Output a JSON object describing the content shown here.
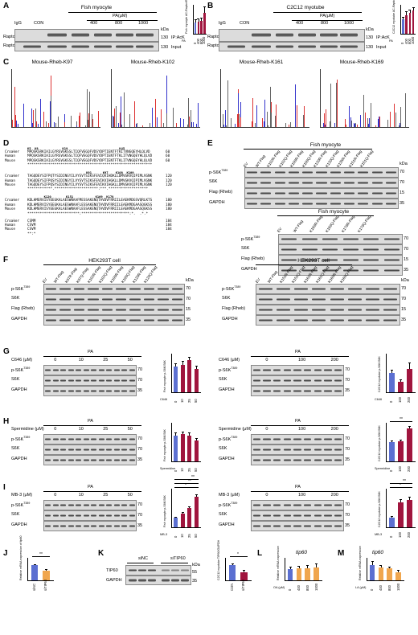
{
  "panels": {
    "A": {
      "letter": "A",
      "title": "Fish myocyte",
      "pa_label": "PA(μM)",
      "lanes": [
        "IgG",
        "CON",
        "400",
        "800",
        "1000"
      ],
      "rows": [
        {
          "name": "Raptor",
          "kda": "130",
          "side": "IP:AcK"
        },
        {
          "name": "Raptor",
          "kda": "130",
          "side": "Input"
        }
      ],
      "kda_label": "kDa",
      "chart_data": {
        "type": "bar",
        "categories": [
          "0",
          "400",
          "800",
          "1000"
        ],
        "values": [
          1.0,
          1.05,
          1.1,
          1.8
        ],
        "errors": [
          0.2,
          0.2,
          0.25,
          0.5
        ],
        "ylim": [
          0,
          2.5
        ],
        "ylabel": "Fish myocyte AC-Raptor/Raptor",
        "xlabel": "PA"
      }
    },
    "B": {
      "letter": "B",
      "title": "C2C12 myotube",
      "pa_label": "PA(μM)",
      "lanes": [
        "IgG",
        "CON",
        "400",
        "800",
        "1000"
      ],
      "rows": [
        {
          "name": "Raptor",
          "kda": "130",
          "side": "IP:AcK"
        },
        {
          "name": "Raptor",
          "kda": "130",
          "side": "Input"
        }
      ],
      "kda_label": "kDa",
      "chart_data": {
        "type": "bar",
        "categories": [
          "0",
          "400",
          "800",
          "1000"
        ],
        "values": [
          1.0,
          1.3,
          1.45,
          1.6
        ],
        "errors": [
          0.15,
          0.2,
          0.2,
          0.2
        ],
        "ylim": [
          0,
          2.0
        ],
        "ylabel": "C2C12 myotube AC-Raptor/Raptor",
        "xlabel": "PA"
      }
    },
    "C": {
      "letter": "C",
      "spectra": [
        "Mouse-Rheb-K97",
        "Mouse-Rheb-K102",
        "Mouse-Rheb-K161",
        "Mouse-Rheb-K169"
      ]
    },
    "D": {
      "letter": "D",
      "species": [
        "Croaker",
        "Human",
        "Mouse"
      ],
      "blocks": [
        {
          "sites": "K5  K8             K19                            K45",
          "seqs": [
            "MPQSKSRKIAILGYRSVGKSSLTIQFVEGQFVDSYDPTIENTFTKITVNGQEYHLQLVD",
            "MPQSKSRKIAILGYRSVGKSSLTIQFVEGQFVDSYDPTIENTFTKLITVNGQEYHLQLVD",
            "MPQSKSRKIAILGYRSVGKSSLTIQFVEGQFVDSYDPTIENTFTKLITVNGQEYHLQLVD"
          ],
          "end": [
            "60",
            "60",
            "60"
          ],
          "cons": "************************************************************"
        },
        {
          "sites": "                                K91      K97    K108  K109",
          "seqs": [
            "TAGQDEYSIFPQTYSIDINGYILVYSVTSIKSFEVIQVIHDKLLDMVGKVQIPIMLVGNK",
            "TAGQDEYSIFPQSYSIDINGYILVYSVTSIKSFEVIKVIHGKLLDMVGKVQIPIMLVGNK",
            "TAGQDEYSIFPQSYSIDINGYILVYSVTSIKSFEVIKVIHGKLLDMVGKVQIPIMLVGNK"
          ],
          "end": [
            "120",
            "120",
            "120"
          ],
          "cons": "************.*********************:***.*******************"
        },
        {
          "sites": "         K120        K151            K169  K178",
          "seqs": [
            "KDLHMERVISYEEGKALAESWNAAFMESSAKENQTAVDVFRRIILEAEKMDGSVQRLKTS",
            "KDLHMERVISYEEGKALAESWNAAFLESSAKENQTAVDVFRRIILEAEKMDGAASQGKSS",
            "KDLHMERVISYEEGKALAESWNAAFLESSAKENQTAVDVFRRIILEAEKMDGAASQGKSS"
          ],
          "end": [
            "180",
            "180",
            "180"
          ],
          "cons": "*************************:***********************:*.  .*.*"
        },
        {
          "sites": "",
          "seqs": [
            "CSMM",
            "CSVM",
            "CSVM"
          ],
          "end": [
            "184",
            "184",
            "184"
          ],
          "cons": "**:*"
        }
      ]
    },
    "E": {
      "letter": "E",
      "title_top": "Fish myocyte",
      "lanes_top": [
        "EV",
        "WT-Flag",
        "K102R-Flag",
        "K102Q-Flag",
        "K109R-Flag",
        "K109Q-Flag",
        "K120R-Flag",
        "K120Q-Flag",
        "K135R-Flag",
        "K151R-Flag",
        "K151Q-Flag"
      ],
      "title_bottom": "Fish myocyte",
      "lanes_bottom": [
        "EV",
        "WT-Flag",
        "K169R-Flag",
        "K169Q-Flag",
        "K178R-Flag",
        "K178Q-Flag"
      ],
      "rows": [
        {
          "name": "p-S6K",
          "sup": "T389",
          "kda": "70"
        },
        {
          "name": "S6K",
          "sup": "",
          "kda": "70"
        },
        {
          "name": "Flag (Rheb)",
          "sup": "",
          "kda": "15"
        },
        {
          "name": "GAPDH",
          "sup": "",
          "kda": "35"
        }
      ],
      "kda_label": "kDa"
    },
    "F": {
      "letter": "F",
      "title_left": "HEK293T cell",
      "lanes_left": [
        "EV",
        "WT-Flag",
        "K97R-Flag",
        "K97Q-Flag",
        "K102R-Flag",
        "K102Q-Flag",
        "K109R-Flag",
        "K109Q-Flag",
        "K120R-Flag",
        "K120Q-Flag"
      ],
      "title_right": "HEK293T cell",
      "lanes_right": [
        "EV",
        "WT-Flag",
        "K151R-Flag",
        "K151Q-Flag",
        "K161R-Flag",
        "K161Q-Flag",
        "K169R-Flag",
        "K169Q-Flag"
      ],
      "rows": [
        {
          "name": "p-S6K",
          "sup": "T389",
          "kda": "70"
        },
        {
          "name": "S6K",
          "sup": "",
          "kda": "70"
        },
        {
          "name": "Flag (Rheb)",
          "sup": "",
          "kda": "15"
        },
        {
          "name": "GAPDH",
          "sup": "",
          "kda": "35"
        }
      ],
      "kda_label": "kDa"
    },
    "G": {
      "letter": "G",
      "left": {
        "treat": "C646 (μM)",
        "pa": "PA",
        "doses": [
          "0",
          "10",
          "25",
          "50"
        ]
      },
      "right": {
        "treat": "C646 (μM)",
        "pa": "PA",
        "doses": [
          "0",
          "100",
          "200"
        ]
      },
      "rows": [
        {
          "name": "p-S6K",
          "sup": "T389",
          "kda": "70"
        },
        {
          "name": "S6K",
          "sup": "",
          "kda": "70"
        },
        {
          "name": "GAPDH",
          "sup": "",
          "kda": "35"
        }
      ],
      "chart_left": {
        "type": "bar",
        "categories": [
          "0",
          "10",
          "25",
          "50"
        ],
        "values": [
          1.0,
          1.05,
          1.25,
          0.9
        ],
        "errors": [
          0.1,
          0.15,
          0.1,
          0.1
        ],
        "ylim": [
          0,
          1.5
        ],
        "ylabel": "Fish myocyte p-S6K/S6K",
        "xlabel": "C646"
      },
      "chart_right": {
        "type": "bar",
        "categories": [
          "0",
          "100",
          "200"
        ],
        "values": [
          1.0,
          0.55,
          1.2
        ],
        "errors": [
          0.15,
          0.1,
          0.3
        ],
        "ylim": [
          0,
          2.0
        ],
        "ylabel": "C2C12 myotube p-S6K/S6K",
        "xlabel": "C646"
      }
    },
    "H": {
      "letter": "H",
      "left": {
        "treat": "Spermidine (μM)",
        "pa": "PA",
        "doses": [
          "0",
          "10",
          "25",
          "50"
        ]
      },
      "right": {
        "treat": "Spermidine (μM)",
        "pa": "PA",
        "doses": [
          "0",
          "100",
          "200"
        ]
      },
      "rows": [
        {
          "name": "p-S6K",
          "sup": "T389",
          "kda": "70"
        },
        {
          "name": "S6K",
          "sup": "",
          "kda": "70"
        },
        {
          "name": "GAPDH",
          "sup": "",
          "kda": "35"
        }
      ],
      "chart_left": {
        "type": "bar",
        "categories": [
          "0",
          "10",
          "25",
          "50"
        ],
        "values": [
          1.0,
          1.05,
          1.0,
          0.8
        ],
        "errors": [
          0.1,
          0.1,
          0.1,
          0.1
        ],
        "ylim": [
          0,
          1.5
        ],
        "ylabel": "Fish myocyte p-S6K/S6K",
        "xlabel": "Spermidine"
      },
      "chart_right": {
        "type": "bar",
        "categories": [
          "0",
          "100",
          "200"
        ],
        "values": [
          1.0,
          1.05,
          1.7
        ],
        "errors": [
          0.05,
          0.05,
          0.1
        ],
        "ylim": [
          0,
          2.0
        ],
        "ylabel": "C2C12 myotube p-S6K/S6K",
        "xlabel": "Spermidine",
        "sig": "**"
      }
    },
    "I": {
      "letter": "I",
      "left": {
        "treat": "MB-3 (μM)",
        "pa": "PA",
        "doses": [
          "0",
          "10",
          "25",
          "50"
        ]
      },
      "right": {
        "treat": "MB-3 (μM)",
        "pa": "PA",
        "doses": [
          "0",
          "100",
          "200"
        ]
      },
      "rows": [
        {
          "name": "p-S6K",
          "sup": "T389",
          "kda": "70"
        },
        {
          "name": "S6K",
          "sup": "",
          "kda": "70"
        },
        {
          "name": "GAPDH",
          "sup": "",
          "kda": "35"
        }
      ],
      "chart_left": {
        "type": "bar",
        "categories": [
          "0",
          "10",
          "25",
          "50"
        ],
        "values": [
          1.0,
          1.4,
          2.0,
          3.2
        ],
        "errors": [
          0.05,
          0.1,
          0.15,
          0.2
        ],
        "ylim": [
          0,
          4
        ],
        "ylabel": "Fish myocyte p-S6K/S6K",
        "xlabel": "MB-3",
        "sig": [
          "*",
          "**",
          "**"
        ]
      },
      "chart_right": {
        "type": "bar",
        "categories": [
          "0",
          "100",
          "200"
        ],
        "values": [
          1.0,
          2.6,
          2.8
        ],
        "errors": [
          0.1,
          0.3,
          0.3
        ],
        "ylim": [
          0,
          4
        ],
        "ylabel": "C2C12 myotube p-S6K/S6K",
        "xlabel": "MB-3",
        "sig": [
          "*",
          "**"
        ]
      }
    },
    "J": {
      "letter": "J",
      "chart_data": {
        "type": "bar",
        "categories": [
          "siNC",
          "siTIP60"
        ],
        "values": [
          1.0,
          0.65
        ],
        "errors": [
          0.05,
          0.05
        ],
        "ylim": [
          0,
          1.5
        ],
        "ylabel": "Relative mRNA expression of tip60",
        "sig": "**"
      }
    },
    "K": {
      "letter": "K",
      "lanes": [
        "siNC",
        "siTIP60"
      ],
      "rows": [
        {
          "name": "TIP60",
          "kda": "55"
        },
        {
          "name": "GAPDH",
          "kda": "35"
        }
      ],
      "kda_label": "kDa",
      "chart_data": {
        "type": "bar",
        "categories": [
          "CON",
          "siTIP60"
        ],
        "values": [
          1.0,
          0.55
        ],
        "errors": [
          0.1,
          0.1
        ],
        "ylim": [
          0,
          1.5
        ],
        "ylabel": "C2C12 myotube TIP60/GAPDH",
        "sig": "*"
      }
    },
    "L": {
      "letter": "L",
      "title": "tip60",
      "chart_data": {
        "type": "bar",
        "categories": [
          "0",
          "400",
          "800",
          "1000"
        ],
        "values": [
          1.0,
          1.05,
          1.1,
          1.15
        ],
        "errors": [
          0.2,
          0.2,
          0.2,
          0.3
        ],
        "ylim": [
          0,
          2.0
        ],
        "ylabel": "Relative mRNA expression",
        "xlabel": "OA (μM)"
      }
    },
    "M": {
      "letter": "M",
      "title": "tip60",
      "chart_data": {
        "type": "bar",
        "categories": [
          "0",
          "400",
          "800",
          "1000"
        ],
        "values": [
          1.0,
          0.85,
          0.8,
          0.55
        ],
        "errors": [
          0.25,
          0.15,
          0.1,
          0.1
        ],
        "ylim": [
          0,
          1.5
        ],
        "ylabel": "Relative mRNA expression",
        "xlabel": "LA (μM)"
      }
    }
  },
  "colors": {
    "blue": "#5b6fd1",
    "red": "#a0153e",
    "orange": "#f0a64e",
    "blot_bg": "#dcdcdc",
    "seq_highlight": "#2f6db5",
    "box_red": "#c0392b"
  }
}
